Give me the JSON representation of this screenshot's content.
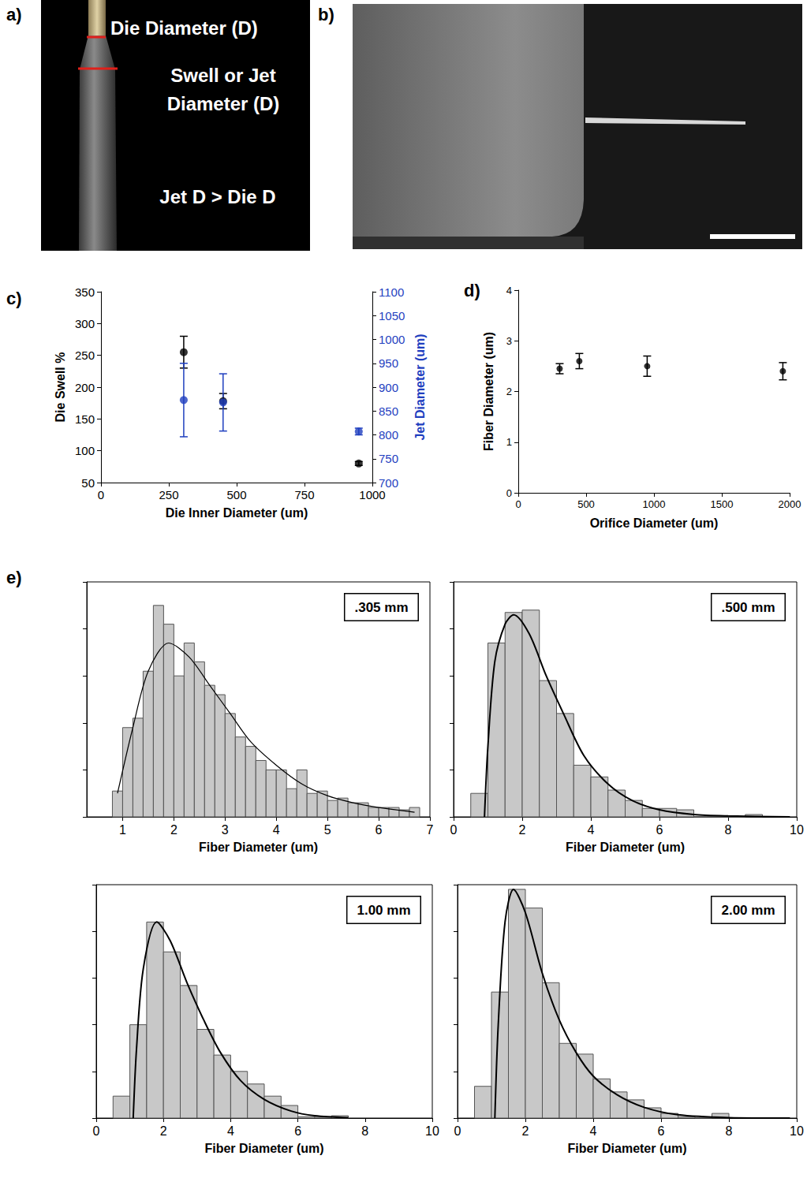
{
  "images": [
    {
      "panel": "a)",
      "labels": [
        "Die Diameter (D)",
        "Swell or Jet Diameter (D)",
        "Jet D > Die D"
      ]
    },
    {
      "panel": "b)"
    }
  ],
  "chart_data": [
    {
      "type": "scatter",
      "panel": "c)",
      "x_label": "Die Inner Diameter (um)",
      "y_label": "Die Swell %",
      "y2_label": "Jet Diameter (um)",
      "xlim": [
        0,
        1000
      ],
      "xticks": [
        0,
        250,
        500,
        750,
        1000
      ],
      "ylim": [
        50,
        350
      ],
      "yticks": [
        50,
        100,
        150,
        200,
        250,
        300,
        350
      ],
      "y2lim": [
        700,
        1100
      ],
      "y2ticks": [
        700,
        750,
        800,
        850,
        900,
        950,
        1000,
        1050,
        1100
      ],
      "series": [
        {
          "color": "#000000",
          "marker": "circle",
          "x": [
            305,
            450,
            950
          ],
          "values": [
            255,
            178,
            80
          ],
          "errors": [
            25,
            12,
            3
          ]
        },
        {
          "color": "#1f3fbf",
          "marker": "circle",
          "axis": "y2",
          "x": [
            305,
            450,
            950
          ],
          "values": [
            873,
            868,
            807
          ],
          "errors": [
            77,
            60,
            7
          ]
        }
      ]
    },
    {
      "type": "scatter",
      "panel": "d)",
      "x_label": "Orifice Diameter (um)",
      "y_label": "Fiber Diameter (um)",
      "xlim": [
        0,
        2000
      ],
      "xticks": [
        0,
        500,
        1000,
        1500,
        2000
      ],
      "ylim": [
        0,
        4
      ],
      "yticks": [
        0,
        1,
        2,
        3,
        4
      ],
      "series": [
        {
          "color": "#000000",
          "marker": "circle",
          "x": [
            305,
            450,
            950,
            1950
          ],
          "values": [
            2.45,
            2.6,
            2.5,
            2.4
          ],
          "errors": [
            0.1,
            0.15,
            0.2,
            0.17
          ]
        }
      ]
    },
    {
      "type": "histogram",
      "panel": "e)",
      "annotation": ".305 mm",
      "x_label": "Fiber Diameter (um)",
      "xlim": [
        0.3,
        7
      ],
      "xticks": [
        1,
        2,
        3,
        4,
        5,
        6,
        7
      ],
      "ylim": [
        0,
        50
      ],
      "yticks": [
        0,
        10,
        20,
        30,
        40,
        50
      ],
      "tick_labels": "x",
      "color": "#c8c8c8",
      "bins": [
        0.8,
        1,
        1.2,
        1.4,
        1.6,
        1.8,
        2,
        2.2,
        2.4,
        2.6,
        2.8,
        3,
        3.2,
        3.4,
        3.6,
        3.8,
        4,
        4.2,
        4.4,
        4.6,
        4.8,
        5,
        5.2,
        5.4,
        5.6,
        5.8,
        6,
        6.2,
        6.4,
        6.6,
        6.8
      ],
      "counts": [
        5.5,
        19,
        21,
        31,
        45,
        41,
        30,
        37,
        33,
        28,
        26,
        22,
        17,
        15,
        12,
        10,
        10,
        6,
        10,
        5,
        5.5,
        3.5,
        4,
        3,
        3,
        2,
        2,
        2,
        1.5,
        2
      ],
      "fit": {
        "x": [
          0.9,
          1.2,
          1.5,
          1.9,
          2.3,
          2.7,
          3.1,
          3.5,
          4.0,
          4.5,
          5.0,
          5.5,
          6.0,
          6.7
        ],
        "y": [
          5,
          19,
          31,
          37,
          34,
          28,
          22,
          16,
          11,
          7,
          4.5,
          3,
          2,
          1
        ]
      }
    },
    {
      "type": "histogram",
      "annotation": ".500 mm",
      "x_label": "Fiber Diameter (um)",
      "xlim": [
        0,
        10
      ],
      "xticks": [
        0,
        2,
        4,
        6,
        8,
        10
      ],
      "ylim": [
        0,
        50
      ],
      "yticks": [
        0,
        10,
        20,
        30,
        40,
        50
      ],
      "tick_labels": "x",
      "color": "#c8c8c8",
      "bins": [
        0.5,
        1,
        1.5,
        2,
        2.5,
        3,
        3.5,
        4,
        4.5,
        5,
        5.5,
        6,
        6.5,
        7,
        7.5,
        8,
        8.5,
        9
      ],
      "counts": [
        5,
        37,
        43.5,
        44,
        29,
        22,
        11,
        8.5,
        5.7,
        3.5,
        1.8,
        1.8,
        1.5,
        0,
        0,
        0,
        0.5
      ],
      "fit": {
        "x": [
          0.9,
          1.0,
          1.2,
          1.5,
          1.75,
          2.2,
          2.7,
          3.2,
          3.8,
          4.5,
          5.2,
          6,
          7,
          8,
          9.8
        ],
        "y": [
          0,
          15,
          33,
          41,
          43,
          39,
          30,
          22,
          13,
          7,
          3.5,
          1.5,
          0.5,
          0.2,
          0
        ]
      }
    },
    {
      "type": "histogram",
      "annotation": "1.00 mm",
      "x_label": "Fiber Diameter (um)",
      "xlim": [
        0,
        10
      ],
      "xticks": [
        0,
        2,
        4,
        6,
        8,
        10
      ],
      "ylim": [
        0,
        50
      ],
      "yticks": [
        0,
        10,
        20,
        30,
        40,
        50
      ],
      "tick_labels": "x",
      "color": "#c8c8c8",
      "bins": [
        0.5,
        1,
        1.5,
        2,
        2.5,
        3,
        3.5,
        4,
        4.5,
        5,
        5.5,
        6,
        6.5,
        7,
        7.5
      ],
      "counts": [
        4.7,
        20,
        42,
        35.6,
        28.4,
        19,
        13.5,
        10,
        7.3,
        4.7,
        2.7,
        0.3,
        0.2,
        0.5
      ],
      "fit": {
        "x": [
          1.1,
          1.2,
          1.4,
          1.8,
          2.2,
          2.7,
          3.2,
          3.7,
          4.3,
          5,
          5.8,
          6.5,
          7.5
        ],
        "y": [
          0,
          15,
          32,
          42,
          38,
          29,
          21,
          14,
          8,
          4,
          1.5,
          0.5,
          0.1
        ]
      }
    },
    {
      "type": "histogram",
      "annotation": "2.00 mm",
      "x_label": "Fiber Diameter (um)",
      "xlim": [
        0,
        10
      ],
      "xticks": [
        0,
        2,
        4,
        6,
        8,
        10
      ],
      "ylim": [
        0,
        50
      ],
      "yticks": [
        0,
        10,
        20,
        30,
        40,
        50
      ],
      "tick_labels": "x",
      "color": "#c8c8c8",
      "bins": [
        0.5,
        1,
        1.5,
        2,
        2.5,
        3,
        3.5,
        4,
        4.5,
        5,
        5.5,
        6,
        6.5,
        7,
        7.5,
        8
      ],
      "counts": [
        6.8,
        27,
        49,
        45,
        29,
        16,
        13.7,
        8.4,
        5.6,
        3.9,
        2.2,
        1,
        0.3,
        0,
        1
      ],
      "fit": {
        "x": [
          1.1,
          1.2,
          1.4,
          1.65,
          2.0,
          2.5,
          3.0,
          3.5,
          4.0,
          4.7,
          5.5,
          6.5,
          8,
          9.8
        ],
        "y": [
          0,
          20,
          42,
          49,
          44,
          31,
          21,
          14,
          9,
          5,
          2.3,
          0.7,
          0.1,
          0
        ]
      }
    }
  ]
}
